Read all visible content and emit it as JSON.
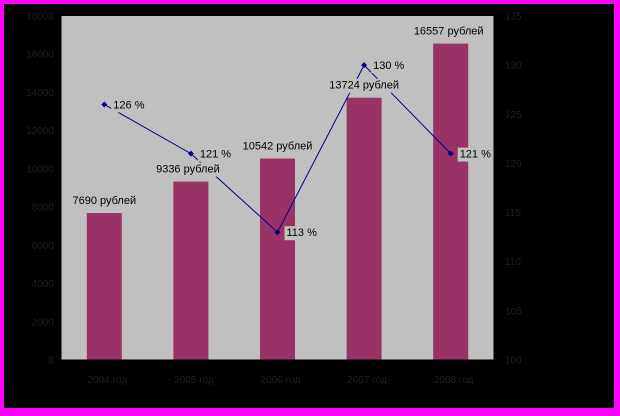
{
  "chart_data": {
    "type": "bar",
    "categories": [
      "2004 год",
      "2005 год",
      "2006 год",
      "2007 год",
      "2008 год"
    ],
    "series": [
      {
        "kind": "bar",
        "axis": "left",
        "values": [
          7690,
          9336,
          10542,
          13724,
          16557
        ],
        "labels": [
          "7690 рублей",
          "9336 рублей",
          "10542 рублей",
          "13724 рублей",
          "16557 рублей"
        ],
        "color": "#993366"
      },
      {
        "kind": "line",
        "axis": "right",
        "values": [
          126,
          121,
          113,
          130,
          121
        ],
        "labels": [
          "126 %",
          "121 %",
          "113 %",
          "130 %",
          "121 %"
        ],
        "color": "#000080"
      }
    ],
    "y_left": {
      "ylim": [
        0,
        18000
      ],
      "ticks": [
        "0",
        "2000",
        "4000",
        "6000",
        "8000",
        "10000",
        "12000",
        "14000",
        "16000",
        "18000"
      ]
    },
    "y_right": {
      "ylim": [
        100,
        135
      ],
      "ticks": [
        "100",
        "105",
        "110",
        "115",
        "120",
        "125",
        "130",
        "135"
      ]
    },
    "grid": false,
    "legend": "none",
    "colors": {
      "page_border": "#ff00ff",
      "background": "#000000",
      "plot_area": "#c0c0c0",
      "bar": "#993366",
      "line": "#000080"
    }
  }
}
